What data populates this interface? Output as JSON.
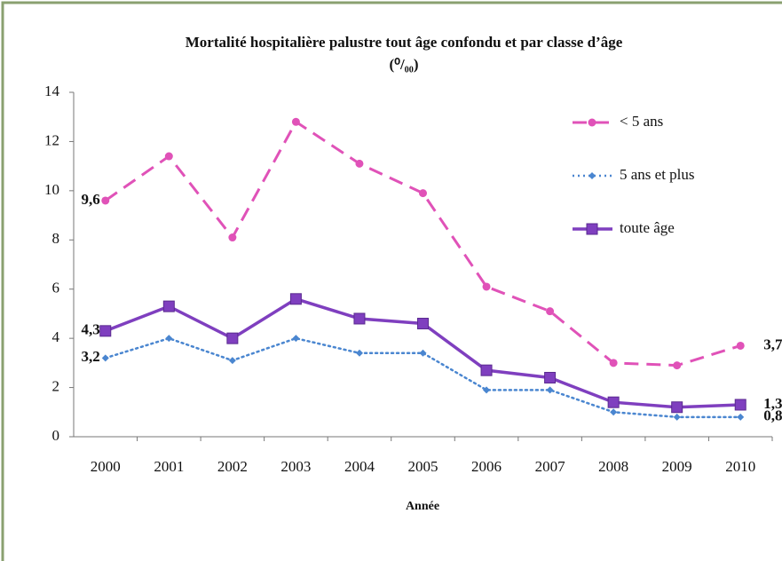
{
  "chart_data": {
    "type": "line",
    "title": "Mortalité hospitalière palustre tout âge confondu et par classe d’âge",
    "subtitle": "(⁰/₀₀)",
    "x_label": "Année",
    "categories": [
      "2000",
      "2001",
      "2002",
      "2003",
      "2004",
      "2005",
      "2006",
      "2007",
      "2008",
      "2009",
      "2010"
    ],
    "series": [
      {
        "name": "< 5 ans",
        "color": "#e052b8",
        "style": "dashed",
        "marker": "circle",
        "values": [
          9.6,
          11.4,
          8.1,
          12.8,
          11.1,
          9.9,
          6.1,
          5.1,
          3.0,
          2.9,
          3.7
        ],
        "value_labels": [
          "9,6",
          null,
          null,
          null,
          null,
          null,
          null,
          null,
          null,
          null,
          "3,7"
        ]
      },
      {
        "name": "5 ans et plus",
        "color": "#4a86d0",
        "style": "dotted",
        "marker": "diamond",
        "values": [
          3.2,
          4.0,
          3.1,
          4.0,
          3.4,
          3.4,
          1.9,
          1.9,
          1.0,
          0.8,
          0.8
        ],
        "value_labels": [
          "3,2",
          null,
          null,
          null,
          null,
          null,
          null,
          null,
          null,
          null,
          "0,8"
        ]
      },
      {
        "name": "toute âge",
        "color": "#7f3fbf",
        "style": "solid",
        "marker": "square",
        "values": [
          4.3,
          5.3,
          4.0,
          5.6,
          4.8,
          4.6,
          2.7,
          2.4,
          1.4,
          1.2,
          1.3
        ],
        "value_labels": [
          "4,3",
          null,
          null,
          null,
          null,
          null,
          null,
          null,
          null,
          null,
          "1,3"
        ]
      }
    ],
    "ylim": [
      0,
      14
    ],
    "yticks": [
      0,
      2,
      4,
      6,
      8,
      10,
      12,
      14
    ],
    "grid": false,
    "legend": "upper right"
  }
}
